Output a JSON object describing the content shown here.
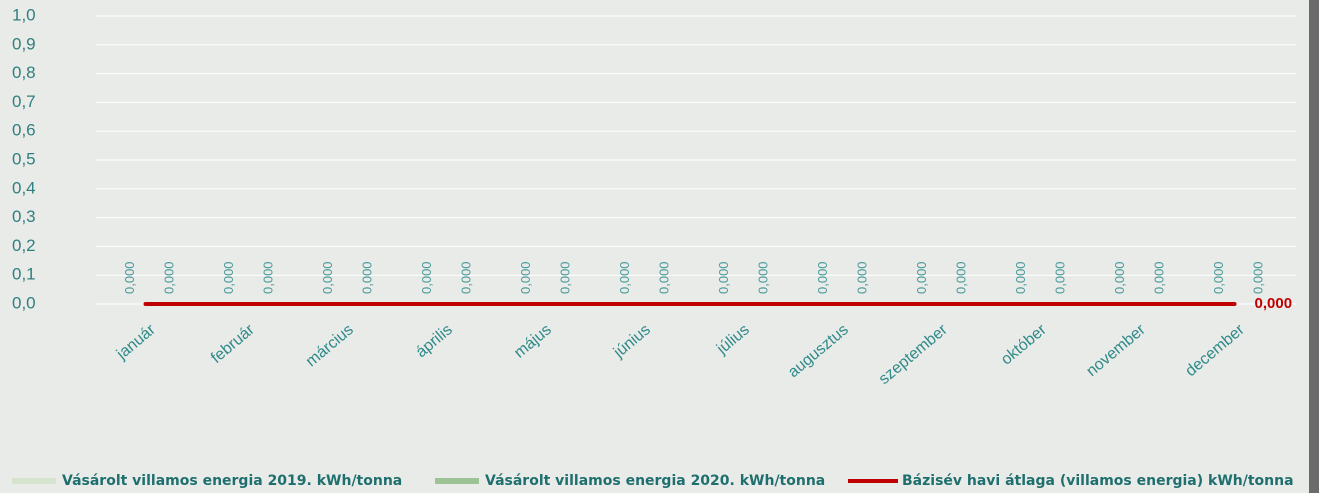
{
  "chart_data": {
    "type": "bar",
    "categories": [
      "január",
      "február",
      "március",
      "április",
      "május",
      "június",
      "július",
      "augusztus",
      "szeptember",
      "október",
      "november",
      "december"
    ],
    "series": [
      {
        "name": "Vásárolt villamos energia 2019. kWh/tonna",
        "type": "bar",
        "color": "#d6e3cf",
        "values": [
          0,
          0,
          0,
          0,
          0,
          0,
          0,
          0,
          0,
          0,
          0,
          0
        ],
        "value_labels": [
          "0,000",
          "0,000",
          "0,000",
          "0,000",
          "0,000",
          "0,000",
          "0,000",
          "0,000",
          "0,000",
          "0,000",
          "0,000",
          "0,000"
        ]
      },
      {
        "name": "Vásárolt villamos energia 2020. kWh/tonna",
        "type": "bar",
        "color": "#9cc296",
        "values": [
          0,
          0,
          0,
          0,
          0,
          0,
          0,
          0,
          0,
          0,
          0,
          0
        ],
        "value_labels": [
          "0,000",
          "0,000",
          "0,000",
          "0,000",
          "0,000",
          "0,000",
          "0,000",
          "0,000",
          "0,000",
          "0,000",
          "0,000",
          "0,000"
        ]
      },
      {
        "name": "Bázisév havi átlaga (villamos energia) kWh/tonna",
        "type": "line",
        "color": "#c00000",
        "values": [
          0,
          0,
          0,
          0,
          0,
          0,
          0,
          0,
          0,
          0,
          0,
          0
        ],
        "value_labels": [
          null,
          null,
          null,
          null,
          null,
          null,
          null,
          null,
          null,
          null,
          null,
          "0,000"
        ]
      }
    ],
    "ylim": [
      0,
      1
    ],
    "yticks": [
      {
        "value": 0,
        "label": "0,0"
      },
      {
        "value": 0.1,
        "label": "0,1"
      },
      {
        "value": 0.2,
        "label": "0,2"
      },
      {
        "value": 0.3,
        "label": "0,3"
      },
      {
        "value": 0.4,
        "label": "0,4"
      },
      {
        "value": 0.5,
        "label": "0,5"
      },
      {
        "value": 0.6,
        "label": "0,6"
      },
      {
        "value": 0.7,
        "label": "0,7"
      },
      {
        "value": 0.8,
        "label": "0,8"
      },
      {
        "value": 0.9,
        "label": "0,9"
      },
      {
        "value": 1,
        "label": "1,0"
      }
    ],
    "grid": true
  }
}
